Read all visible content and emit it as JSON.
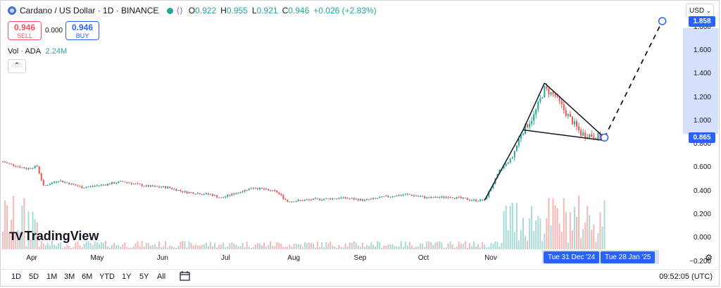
{
  "header": {
    "symbol_title": "Cardano / US Dollar · 1D · BINANCE",
    "ohlc": [
      {
        "label": "O",
        "value": "0.922"
      },
      {
        "label": "H",
        "value": "0.955"
      },
      {
        "label": "L",
        "value": "0.921"
      },
      {
        "label": "C",
        "value": "0.946"
      }
    ],
    "change": "+0.026 (+2.83%)",
    "up_color": "#26a69a",
    "down_color": "#ef5350"
  },
  "trade": {
    "sell_price": "0.946",
    "sell_label": "SELL",
    "spread": "0.000",
    "buy_price": "0.946",
    "buy_label": "BUY"
  },
  "volume": {
    "label": "Vol · ADA",
    "value": "2.24M"
  },
  "currency": "USD",
  "yaxis_badges": {
    "target": {
      "label": "1.858",
      "value": 1.858,
      "color": "#2962ff"
    },
    "current": {
      "label": "0.865",
      "value": 0.865,
      "color": "#2962ff"
    }
  },
  "xaxis_badges": [
    "Tue 31 Dec '24",
    "Tue 28 Jan '25"
  ],
  "logo": "TradingView",
  "ranges": [
    "1D",
    "5D",
    "1M",
    "3M",
    "6M",
    "YTD",
    "1Y",
    "5Y",
    "All"
  ],
  "clock": "09:52:05 (UTC)",
  "chart_data": {
    "type": "candlestick",
    "title": "Cardano / US Dollar · 1D · BINANCE",
    "yticks": [
      "1.800",
      "1.600",
      "1.400",
      "1.200",
      "1.000",
      "0.800",
      "0.600",
      "0.400",
      "0.200",
      "0.000",
      "−0.200"
    ],
    "ytick_values": [
      1.8,
      1.6,
      1.4,
      1.2,
      1.0,
      0.8,
      0.6,
      0.4,
      0.2,
      0.0,
      -0.2
    ],
    "ylim": [
      -0.22,
      1.93
    ],
    "xticks": [
      "Apr",
      "May",
      "Jun",
      "Jul",
      "Aug",
      "Sep",
      "Oct",
      "Nov",
      "Dec"
    ],
    "price_path": [
      [
        "2024-03-25",
        0.66
      ],
      [
        "2024-03-28",
        0.64
      ],
      [
        "2024-04-05",
        0.6
      ],
      [
        "2024-04-10",
        0.62
      ],
      [
        "2024-04-13",
        0.45
      ],
      [
        "2024-04-20",
        0.5
      ],
      [
        "2024-05-01",
        0.44
      ],
      [
        "2024-05-10",
        0.46
      ],
      [
        "2024-05-20",
        0.49
      ],
      [
        "2024-05-31",
        0.45
      ],
      [
        "2024-06-10",
        0.44
      ],
      [
        "2024-06-18",
        0.4
      ],
      [
        "2024-06-30",
        0.38
      ],
      [
        "2024-07-05",
        0.35
      ],
      [
        "2024-07-20",
        0.44
      ],
      [
        "2024-07-31",
        0.4
      ],
      [
        "2024-08-05",
        0.32
      ],
      [
        "2024-08-20",
        0.34
      ],
      [
        "2024-08-31",
        0.35
      ],
      [
        "2024-09-10",
        0.33
      ],
      [
        "2024-09-20",
        0.36
      ],
      [
        "2024-09-30",
        0.38
      ],
      [
        "2024-10-10",
        0.35
      ],
      [
        "2024-10-20",
        0.36
      ],
      [
        "2024-10-31",
        0.33
      ],
      [
        "2024-11-05",
        0.33
      ],
      [
        "2024-11-12",
        0.58
      ],
      [
        "2024-11-18",
        0.7
      ],
      [
        "2024-11-22",
        0.9
      ],
      [
        "2024-11-28",
        1.05
      ],
      [
        "2024-12-03",
        1.28
      ],
      [
        "2024-12-08",
        1.22
      ],
      [
        "2024-12-12",
        1.1
      ],
      [
        "2024-12-16",
        1.0
      ],
      [
        "2024-12-20",
        0.9
      ],
      [
        "2024-12-26",
        0.88
      ],
      [
        "2024-12-31",
        0.865
      ]
    ],
    "volume_peaks_m": [
      "Nov",
      "Dec"
    ],
    "pattern_lines": [
      {
        "from": [
          "2024-11-05",
          0.33
        ],
        "to": [
          "2024-11-23",
          0.93
        ]
      },
      {
        "from": [
          "2024-11-23",
          0.93
        ],
        "to": [
          "2024-12-03",
          1.33
        ]
      },
      {
        "from": [
          "2024-12-03",
          1.33
        ],
        "to": [
          "2024-12-30",
          0.88
        ]
      },
      {
        "from": [
          "2024-11-23",
          0.93
        ],
        "to": [
          "2024-12-31",
          0.84
        ]
      }
    ],
    "projection": {
      "from": [
        "2024-12-31",
        0.865
      ],
      "to": [
        "2025-01-27",
        1.858
      ],
      "style": "dashed"
    },
    "grid": false,
    "legend": "top-left"
  }
}
